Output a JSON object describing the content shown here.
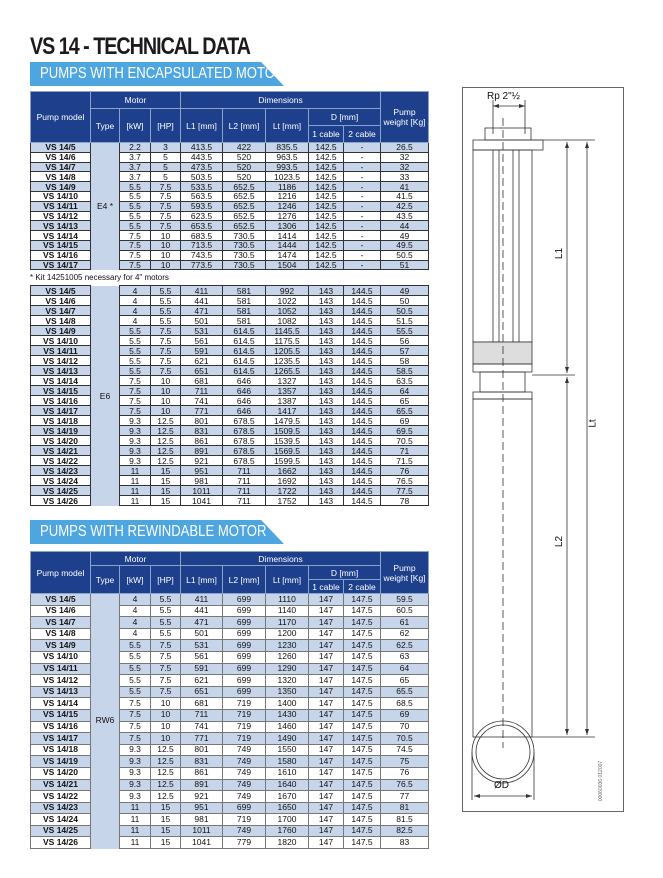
{
  "title": "VS 14 - TECHNICAL DATA",
  "section1": "PUMPS WITH ENCAPSULATED MOTOR",
  "section2": "PUMPS WITH REWINDABLE MOTOR",
  "note": "* Kit 14251005 necessary for 4\" motors",
  "headers": {
    "pump_model": "Pump model",
    "motor": "Motor",
    "dimensions": "Dimensions",
    "type": "Type",
    "kw": "[kW]",
    "hp": "[HP]",
    "l1": "L1 [mm]",
    "l2": "L2 [mm]",
    "lt": "Lt [mm]",
    "d": "D [mm]",
    "cable1": "1 cable",
    "cable2": "2 cable",
    "weight": "Pump weight [Kg]"
  },
  "colors": {
    "header": "#1d3f8c",
    "banner": "#4ea6e0",
    "row_alt": "#c7d5ea"
  },
  "table1": {
    "type": "E4 *",
    "rows": [
      [
        "VS 14/5",
        "2.2",
        "3",
        "413.5",
        "422",
        "835.5",
        "142.5",
        "-",
        "26.5"
      ],
      [
        "VS 14/6",
        "3.7",
        "5",
        "443.5",
        "520",
        "963.5",
        "142.5",
        "-",
        "32"
      ],
      [
        "VS 14/7",
        "3.7",
        "5",
        "473.5",
        "520",
        "993.5",
        "142.5",
        "-",
        "32"
      ],
      [
        "VS 14/8",
        "3.7",
        "5",
        "503.5",
        "520",
        "1023.5",
        "142.5",
        "-",
        "33"
      ],
      [
        "VS 14/9",
        "5.5",
        "7.5",
        "533.5",
        "652.5",
        "1186",
        "142.5",
        "-",
        "41"
      ],
      [
        "VS 14/10",
        "5.5",
        "7.5",
        "563.5",
        "652.5",
        "1216",
        "142.5",
        "-",
        "41.5"
      ],
      [
        "VS 14/11",
        "5.5",
        "7.5",
        "593.5",
        "652.5",
        "1246",
        "142.5",
        "-",
        "42.5"
      ],
      [
        "VS 14/12",
        "5.5",
        "7.5",
        "623.5",
        "652.5",
        "1276",
        "142.5",
        "-",
        "43.5"
      ],
      [
        "VS 14/13",
        "5.5",
        "7.5",
        "653.5",
        "652.5",
        "1306",
        "142.5",
        "-",
        "44"
      ],
      [
        "VS 14/14",
        "7.5",
        "10",
        "683.5",
        "730.5",
        "1414",
        "142.5",
        "-",
        "49"
      ],
      [
        "VS 14/15",
        "7.5",
        "10",
        "713.5",
        "730.5",
        "1444",
        "142.5",
        "-",
        "49.5"
      ],
      [
        "VS 14/16",
        "7.5",
        "10",
        "743.5",
        "730.5",
        "1474",
        "142.5",
        "-",
        "50.5"
      ],
      [
        "VS 14/17",
        "7.5",
        "10",
        "773.5",
        "730.5",
        "1504",
        "142.5",
        "-",
        "51"
      ]
    ]
  },
  "table2": {
    "type": "E6",
    "rows": [
      [
        "VS 14/5",
        "4",
        "5.5",
        "411",
        "581",
        "992",
        "143",
        "144.5",
        "49"
      ],
      [
        "VS 14/6",
        "4",
        "5.5",
        "441",
        "581",
        "1022",
        "143",
        "144.5",
        "50"
      ],
      [
        "VS 14/7",
        "4",
        "5.5",
        "471",
        "581",
        "1052",
        "143",
        "144.5",
        "50.5"
      ],
      [
        "VS 14/8",
        "4",
        "5.5",
        "501",
        "581",
        "1082",
        "143",
        "144.5",
        "51.5"
      ],
      [
        "VS 14/9",
        "5.5",
        "7.5",
        "531",
        "614.5",
        "1145.5",
        "143",
        "144.5",
        "55.5"
      ],
      [
        "VS 14/10",
        "5.5",
        "7.5",
        "561",
        "614.5",
        "1175.5",
        "143",
        "144.5",
        "56"
      ],
      [
        "VS 14/11",
        "5.5",
        "7.5",
        "591",
        "614.5",
        "1205.5",
        "143",
        "144.5",
        "57"
      ],
      [
        "VS 14/12",
        "5.5",
        "7.5",
        "621",
        "614.5",
        "1235.5",
        "143",
        "144.5",
        "58"
      ],
      [
        "VS 14/13",
        "5.5",
        "7.5",
        "651",
        "614.5",
        "1265.5",
        "143",
        "144.5",
        "58.5"
      ],
      [
        "VS 14/14",
        "7.5",
        "10",
        "681",
        "646",
        "1327",
        "143",
        "144.5",
        "63.5"
      ],
      [
        "VS 14/15",
        "7.5",
        "10",
        "711",
        "646",
        "1357",
        "143",
        "144.5",
        "64"
      ],
      [
        "VS 14/16",
        "7.5",
        "10",
        "741",
        "646",
        "1387",
        "143",
        "144.5",
        "65"
      ],
      [
        "VS 14/17",
        "7.5",
        "10",
        "771",
        "646",
        "1417",
        "143",
        "144.5",
        "65.5"
      ],
      [
        "VS 14/18",
        "9.3",
        "12.5",
        "801",
        "678.5",
        "1479.5",
        "143",
        "144.5",
        "69"
      ],
      [
        "VS 14/19",
        "9.3",
        "12.5",
        "831",
        "678.5",
        "1509.5",
        "143",
        "144.5",
        "69.5"
      ],
      [
        "VS 14/20",
        "9.3",
        "12.5",
        "861",
        "678.5",
        "1539.5",
        "143",
        "144.5",
        "70.5"
      ],
      [
        "VS 14/21",
        "9.3",
        "12.5",
        "891",
        "678.5",
        "1569.5",
        "143",
        "144.5",
        "71"
      ],
      [
        "VS 14/22",
        "9.3",
        "12.5",
        "921",
        "678.5",
        "1599.5",
        "143",
        "144.5",
        "71.5"
      ],
      [
        "VS 14/23",
        "11",
        "15",
        "951",
        "711",
        "1662",
        "143",
        "144.5",
        "76"
      ],
      [
        "VS 14/24",
        "11",
        "15",
        "981",
        "711",
        "1692",
        "143",
        "144.5",
        "76.5"
      ],
      [
        "VS 14/25",
        "11",
        "15",
        "1011",
        "711",
        "1722",
        "143",
        "144.5",
        "77.5"
      ],
      [
        "VS 14/26",
        "11",
        "15",
        "1041",
        "711",
        "1752",
        "143",
        "144.5",
        "78"
      ]
    ]
  },
  "table3": {
    "type": "RW6",
    "rows": [
      [
        "VS 14/5",
        "4",
        "5.5",
        "411",
        "699",
        "1110",
        "147",
        "147.5",
        "59.5"
      ],
      [
        "VS 14/6",
        "4",
        "5.5",
        "441",
        "699",
        "1140",
        "147",
        "147.5",
        "60.5"
      ],
      [
        "VS 14/7",
        "4",
        "5.5",
        "471",
        "699",
        "1170",
        "147",
        "147.5",
        "61"
      ],
      [
        "VS 14/8",
        "4",
        "5.5",
        "501",
        "699",
        "1200",
        "147",
        "147.5",
        "62"
      ],
      [
        "VS 14/9",
        "5.5",
        "7.5",
        "531",
        "699",
        "1230",
        "147",
        "147.5",
        "62.5"
      ],
      [
        "VS 14/10",
        "5.5",
        "7.5",
        "561",
        "699",
        "1260",
        "147",
        "147.5",
        "63"
      ],
      [
        "VS 14/11",
        "5.5",
        "7.5",
        "591",
        "699",
        "1290",
        "147",
        "147.5",
        "64"
      ],
      [
        "VS 14/12",
        "5.5",
        "7.5",
        "621",
        "699",
        "1320",
        "147",
        "147.5",
        "65"
      ],
      [
        "VS 14/13",
        "5.5",
        "7.5",
        "651",
        "699",
        "1350",
        "147",
        "147.5",
        "65.5"
      ],
      [
        "VS 14/14",
        "7.5",
        "10",
        "681",
        "719",
        "1400",
        "147",
        "147.5",
        "68.5"
      ],
      [
        "VS 14/15",
        "7.5",
        "10",
        "711",
        "719",
        "1430",
        "147",
        "147.5",
        "69"
      ],
      [
        "VS 14/16",
        "7.5",
        "10",
        "741",
        "719",
        "1460",
        "147",
        "147.5",
        "70"
      ],
      [
        "VS 14/17",
        "7.5",
        "10",
        "771",
        "719",
        "1490",
        "147",
        "147.5",
        "70.5"
      ],
      [
        "VS 14/18",
        "9.3",
        "12.5",
        "801",
        "749",
        "1550",
        "147",
        "147.5",
        "74.5"
      ],
      [
        "VS 14/19",
        "9.3",
        "12.5",
        "831",
        "749",
        "1580",
        "147",
        "147.5",
        "75"
      ],
      [
        "VS 14/20",
        "9.3",
        "12.5",
        "861",
        "749",
        "1610",
        "147",
        "147.5",
        "76"
      ],
      [
        "VS 14/21",
        "9.3",
        "12.5",
        "891",
        "749",
        "1640",
        "147",
        "147.5",
        "76.5"
      ],
      [
        "VS 14/22",
        "9.3",
        "12.5",
        "921",
        "749",
        "1670",
        "147",
        "147.5",
        "77"
      ],
      [
        "VS 14/23",
        "11",
        "15",
        "951",
        "699",
        "1650",
        "147",
        "147.5",
        "81"
      ],
      [
        "VS 14/24",
        "11",
        "15",
        "981",
        "719",
        "1700",
        "147",
        "147.5",
        "81.5"
      ],
      [
        "VS 14/25",
        "11",
        "15",
        "1011",
        "749",
        "1760",
        "147",
        "147.5",
        "82.5"
      ],
      [
        "VS 14/26",
        "11",
        "15",
        "1041",
        "779",
        "1820",
        "147",
        "147.5",
        "83"
      ]
    ]
  },
  "diagram": {
    "rp": "Rp 2\"½",
    "l1": "L1",
    "lt": "Lt",
    "l2": "L2",
    "d": "ØD",
    "code": "00060036 012007"
  }
}
